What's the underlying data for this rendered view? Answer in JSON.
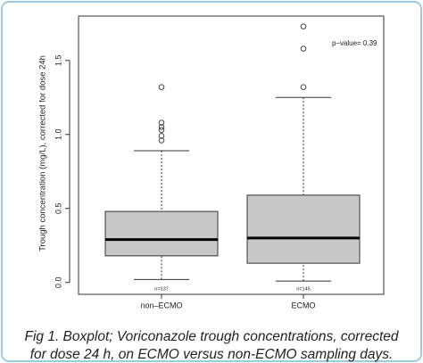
{
  "chart_data": {
    "type": "boxplot",
    "ylabel": "Trough concentration (mg/L), corrected for dose 24h",
    "categories": [
      "non–ECMO",
      "ECMO"
    ],
    "n_labels": [
      "n=137",
      "n=145"
    ],
    "boxes": [
      {
        "low": 0.02,
        "q1": 0.18,
        "median": 0.29,
        "q3": 0.48,
        "high": 0.89,
        "outliers": [
          1.32,
          1.08,
          1.05,
          1.03,
          0.99,
          0.96
        ]
      },
      {
        "low": 0.01,
        "q1": 0.13,
        "median": 0.3,
        "q3": 0.59,
        "high": 1.25,
        "outliers": [
          1.32,
          1.58,
          1.73
        ]
      }
    ],
    "annotation": "p–value= 0.39",
    "ylim": [
      -0.08,
      1.8
    ],
    "yticks": [
      {
        "value": 0,
        "label": "0.0"
      },
      {
        "value": 0.5,
        "label": "0.5"
      },
      {
        "value": 1,
        "label": "1.0"
      },
      {
        "value": 1.5,
        "label": "1.5"
      }
    ],
    "color": "#c8c8c8",
    "caption": [
      "Fig 1. Boxplot; Voriconazole trough concentrations, corrected",
      "for dose 24 h, on ECMO versus non-ECMO sampling days."
    ]
  }
}
